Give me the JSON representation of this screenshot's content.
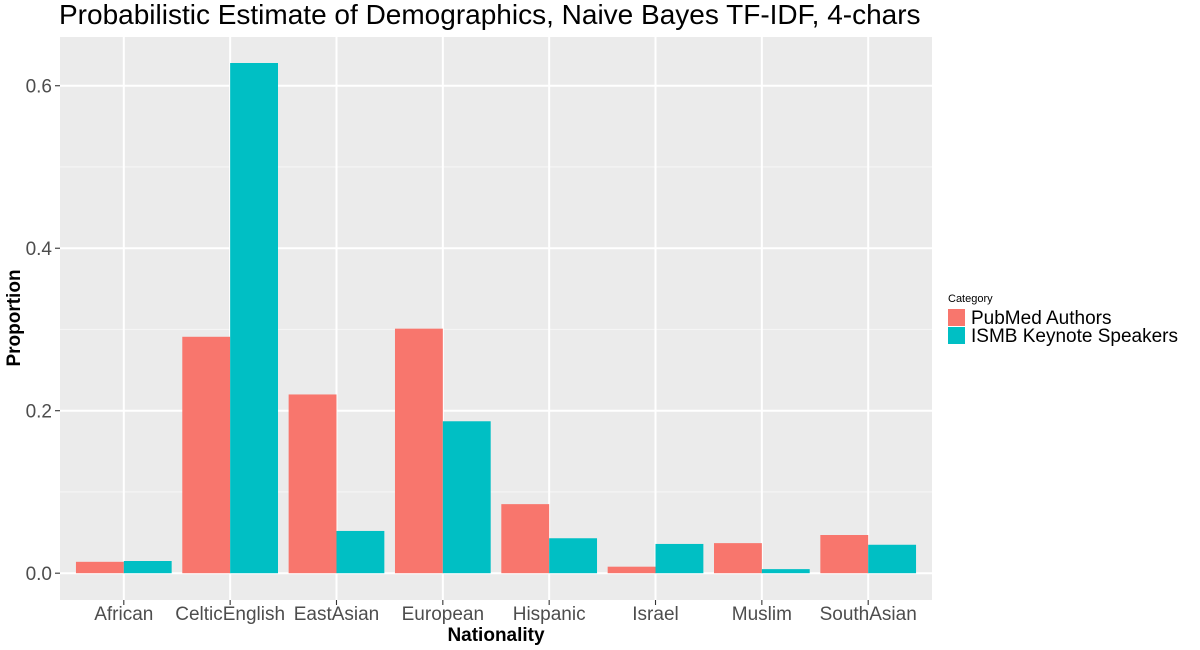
{
  "chart_data": {
    "type": "bar",
    "title": "Probabilistic Estimate of Demographics, Naive Bayes TF-IDF, 4-chars",
    "xlabel": "Nationality",
    "ylabel": "Proportion",
    "categories": [
      "African",
      "CelticEnglish",
      "EastAsian",
      "European",
      "Hispanic",
      "Israel",
      "Muslim",
      "SouthAsian"
    ],
    "series": [
      {
        "name": "PubMed Authors",
        "color": "#F8766D",
        "values": [
          0.014,
          0.291,
          0.22,
          0.301,
          0.085,
          0.008,
          0.037,
          0.047
        ]
      },
      {
        "name": "ISMB Keynote Speakers",
        "color": "#00BFC4",
        "values": [
          0.015,
          0.628,
          0.052,
          0.187,
          0.043,
          0.036,
          0.005,
          0.035
        ]
      }
    ],
    "ylim": [
      -0.033,
      0.66
    ],
    "yticks": [
      0.0,
      0.2,
      0.4,
      0.6
    ],
    "ytick_labels": [
      "0.0",
      "0.2",
      "0.4",
      "0.6"
    ],
    "grid": true,
    "legend": {
      "title": "Category",
      "position": "right"
    },
    "colors": {
      "panel_background": "#EBEBEB",
      "grid_major": "#FFFFFF",
      "grid_minor": "#F5F5F5"
    }
  }
}
